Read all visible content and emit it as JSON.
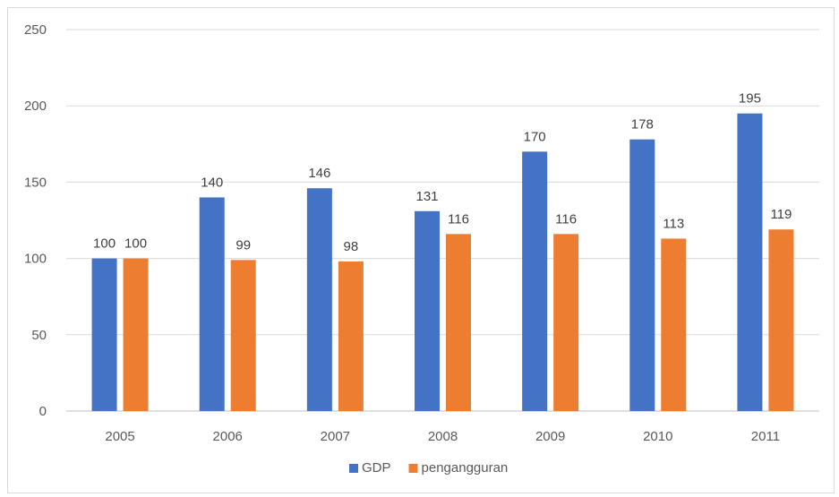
{
  "chart_data": {
    "type": "bar",
    "title": "",
    "xlabel": "",
    "ylabel": "",
    "categories": [
      "2005",
      "2006",
      "2007",
      "2008",
      "2009",
      "2010",
      "2011"
    ],
    "series": [
      {
        "name": "GDP",
        "values": [
          100,
          140,
          146,
          131,
          170,
          178,
          195
        ],
        "color": "#4472C4"
      },
      {
        "name": "pengangguran",
        "values": [
          100,
          99,
          98,
          116,
          116,
          113,
          119
        ],
        "color": "#ED7D31"
      }
    ],
    "ylim": [
      0,
      250
    ],
    "yticks": [
      "0",
      "50",
      "100",
      "150",
      "200",
      "250"
    ],
    "grid": true,
    "legend_position": "bottom",
    "data_labels": true
  }
}
